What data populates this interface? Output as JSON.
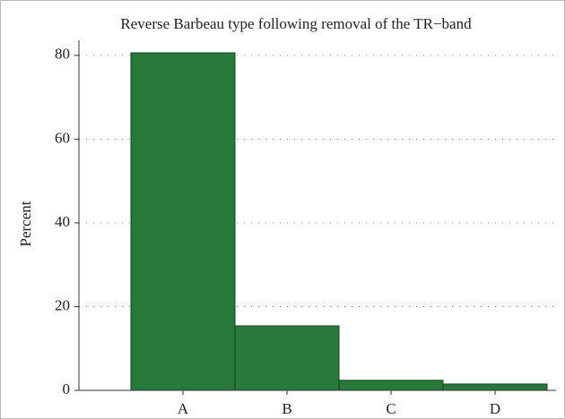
{
  "chart_data": {
    "type": "bar",
    "title": "Reverse Barbeau type following removal of the TR−band",
    "y_label": "Percent",
    "categories": [
      "A",
      "B",
      "C",
      "D"
    ],
    "values": [
      80.6,
      15.4,
      2.4,
      1.5
    ],
    "color": "#287a3b",
    "ylim": [
      0,
      83.6
    ],
    "yticks": [
      0,
      20,
      40,
      60,
      80
    ],
    "grid": true
  }
}
